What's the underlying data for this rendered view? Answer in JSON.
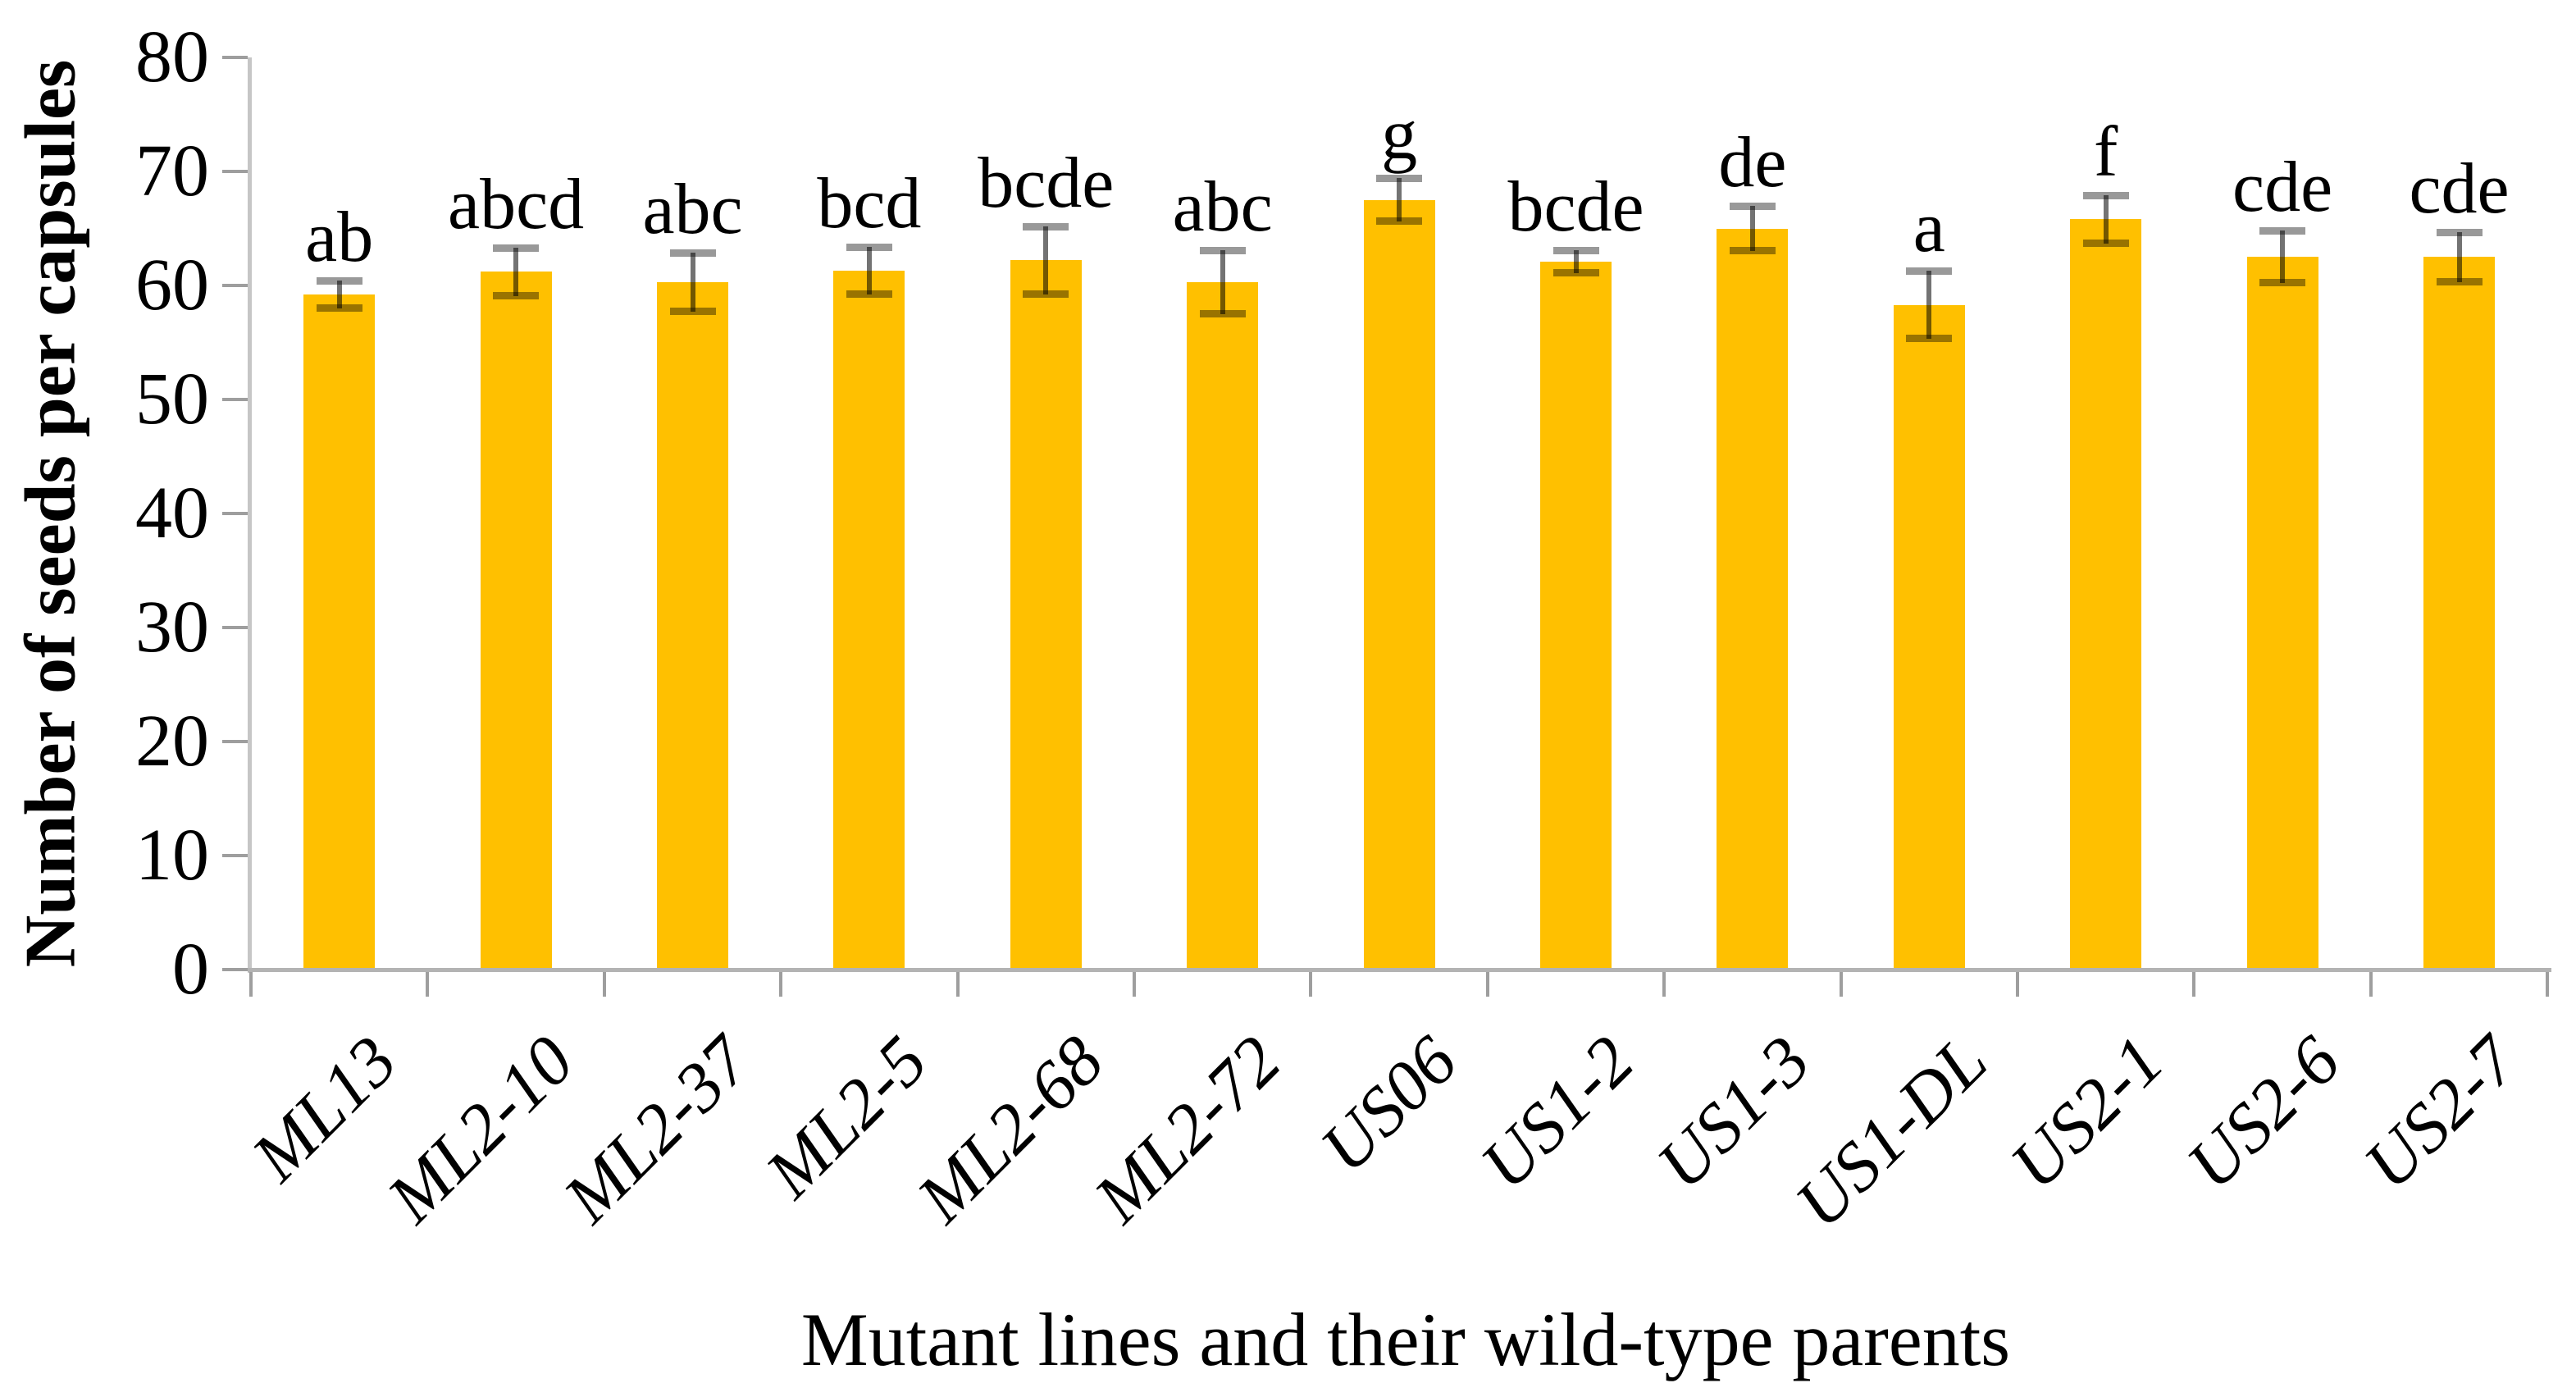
{
  "chart_data": {
    "type": "bar",
    "title": "",
    "xlabel": "Mutant lines and their wild-type parents",
    "ylabel": "Number of seeds per capsules",
    "categories": [
      "ML13",
      "ML2-10",
      "ML2-37",
      "ML2-5",
      "ML2-68",
      "ML2-72",
      "US06",
      "US1-2",
      "US1-3",
      "US1-DL",
      "US2-1",
      "US2-6",
      "US2-7"
    ],
    "values": [
      59.2,
      61.2,
      60.3,
      61.3,
      62.2,
      60.3,
      67.5,
      62.1,
      65.0,
      58.3,
      65.8,
      62.5,
      62.5
    ],
    "error_bars": [
      1.2,
      2.1,
      2.6,
      2.1,
      3.0,
      2.8,
      1.9,
      1.0,
      2.0,
      3.0,
      2.1,
      2.3,
      2.2
    ],
    "sig_labels": [
      "ab",
      "abcd",
      "abc",
      "bcd",
      "bcde",
      "abc",
      "g",
      "bcde",
      "de",
      "a",
      "f",
      "cde",
      "cde"
    ],
    "ylim": [
      0,
      80
    ],
    "yticks": [
      "0",
      "10",
      "20",
      "30",
      "40",
      "50",
      "60",
      "70",
      "80"
    ],
    "grid": false,
    "legend": "none",
    "colors": {
      "bar_fill": "#FFC000",
      "x_axis_line": "#b3b3b3",
      "y_axis_line": "#c6c6c6",
      "tick_mark": "#9e9e9e",
      "error_line": "rgba(0,0,0,0.55)",
      "error_cap": "rgba(0,0,0,0.40)",
      "text": "#000000"
    }
  }
}
